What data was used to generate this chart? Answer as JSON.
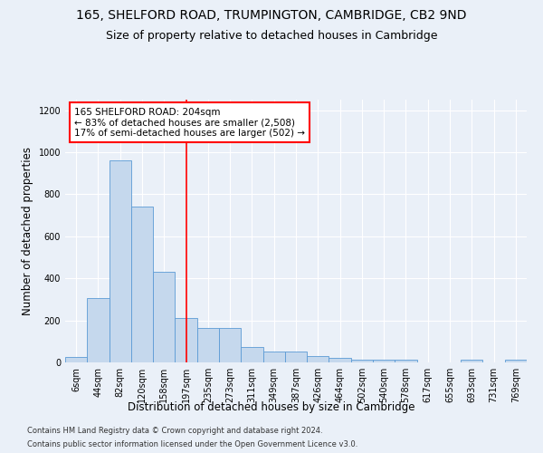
{
  "title1": "165, SHELFORD ROAD, TRUMPINGTON, CAMBRIDGE, CB2 9ND",
  "title2": "Size of property relative to detached houses in Cambridge",
  "xlabel": "Distribution of detached houses by size in Cambridge",
  "ylabel": "Number of detached properties",
  "bin_labels": [
    "6sqm",
    "44sqm",
    "82sqm",
    "120sqm",
    "158sqm",
    "197sqm",
    "235sqm",
    "273sqm",
    "311sqm",
    "349sqm",
    "387sqm",
    "426sqm",
    "464sqm",
    "502sqm",
    "540sqm",
    "578sqm",
    "617sqm",
    "655sqm",
    "693sqm",
    "731sqm",
    "769sqm"
  ],
  "bar_heights": [
    25,
    305,
    960,
    740,
    430,
    210,
    165,
    165,
    75,
    50,
    50,
    30,
    20,
    15,
    15,
    15,
    0,
    0,
    15,
    0,
    15
  ],
  "bar_color": "#c5d8ed",
  "bar_edge_color": "#5b9bd5",
  "vline_x_bin": 5.0,
  "annotation_text": "165 SHELFORD ROAD: 204sqm\n← 83% of detached houses are smaller (2,508)\n17% of semi-detached houses are larger (502) →",
  "annotation_box_color": "white",
  "annotation_box_edge_color": "red",
  "vline_color": "red",
  "ylim": [
    0,
    1250
  ],
  "yticks": [
    0,
    200,
    400,
    600,
    800,
    1000,
    1200
  ],
  "footnote1": "Contains HM Land Registry data © Crown copyright and database right 2024.",
  "footnote2": "Contains public sector information licensed under the Open Government Licence v3.0.",
  "bg_color": "#eaf0f8",
  "plot_bg_color": "#eaf0f8",
  "grid_color": "white",
  "title1_fontsize": 10,
  "title2_fontsize": 9,
  "tick_fontsize": 7,
  "ylabel_fontsize": 8.5,
  "xlabel_fontsize": 8.5,
  "annotation_fontsize": 7.5,
  "footnote_fontsize": 6
}
